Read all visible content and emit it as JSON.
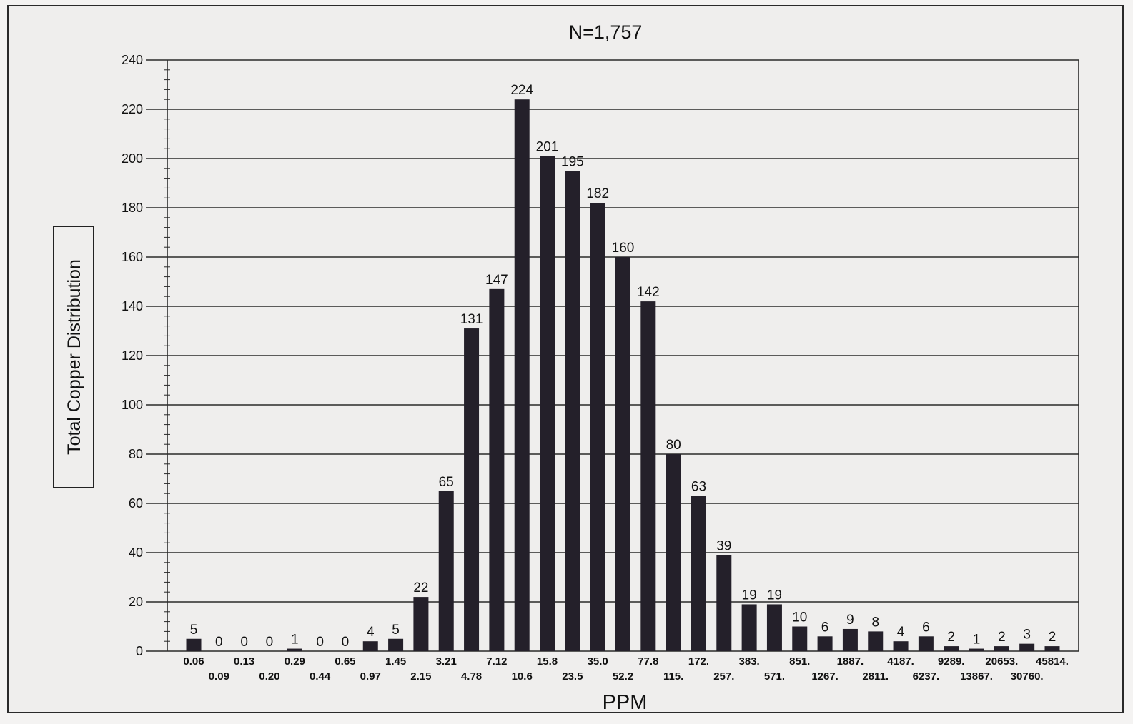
{
  "chart_data": {
    "type": "bar",
    "title": "N=1,757",
    "xlabel": "PPM",
    "ylabel": "Total Copper Distribution",
    "ylim": [
      0,
      240
    ],
    "yticks": [
      0,
      20,
      40,
      60,
      80,
      100,
      120,
      140,
      160,
      180,
      200,
      220,
      240
    ],
    "grid": true,
    "categories": [
      "0.06",
      "0.09",
      "0.13",
      "0.20",
      "0.29",
      "0.44",
      "0.65",
      "0.97",
      "1.45",
      "2.15",
      "3.21",
      "4.78",
      "7.12",
      "10.6",
      "15.8",
      "23.5",
      "35.0",
      "52.2",
      "77.8",
      "115.",
      "172.",
      "257.",
      "383.",
      "571.",
      "851.",
      "1267.",
      "1887.",
      "2811.",
      "4187.",
      "6237.",
      "9289.",
      "13867.",
      "20653.",
      "30760.",
      "45814."
    ],
    "values": [
      5,
      0,
      0,
      0,
      1,
      0,
      0,
      4,
      5,
      22,
      65,
      131,
      147,
      224,
      201,
      195,
      182,
      160,
      142,
      80,
      63,
      39,
      19,
      19,
      10,
      6,
      9,
      8,
      4,
      6,
      2,
      1,
      2,
      3,
      2
    ],
    "bar_color": "#24202a"
  }
}
